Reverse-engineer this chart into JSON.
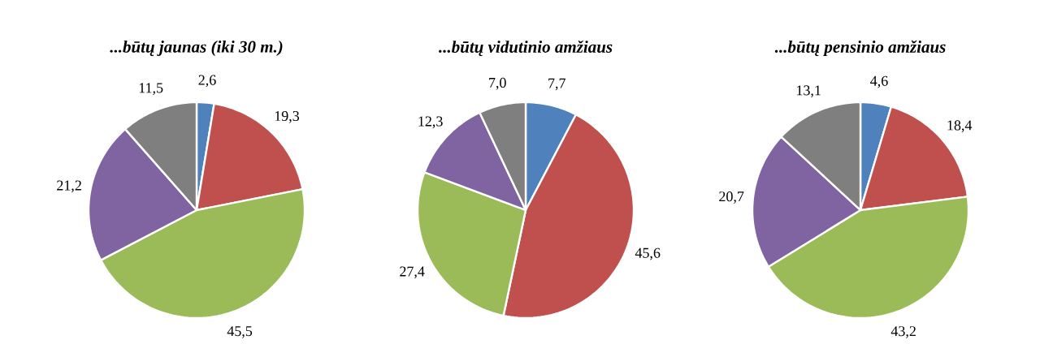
{
  "chart_data": [
    {
      "type": "pie",
      "title": "...būtų jaunas (iki 30 m.)",
      "categories": [
        null,
        null,
        null,
        null,
        null
      ],
      "values": [
        2.6,
        19.3,
        45.5,
        21.2,
        11.5
      ],
      "value_labels": [
        "2,6",
        "19,3",
        "45,5",
        "21,2",
        "11,5"
      ],
      "colors": [
        "#4f81bd",
        "#c0504d",
        "#9bbb59",
        "#8064a2",
        "#7f7f7f"
      ]
    },
    {
      "type": "pie",
      "title": "...būtų vidutinio amžiaus",
      "categories": [
        null,
        null,
        null,
        null,
        null
      ],
      "values": [
        7.7,
        45.6,
        27.4,
        12.3,
        7.0
      ],
      "value_labels": [
        "7,7",
        "45,6",
        "27,4",
        "12,3",
        "7,0"
      ],
      "colors": [
        "#4f81bd",
        "#c0504d",
        "#9bbb59",
        "#8064a2",
        "#7f7f7f"
      ]
    },
    {
      "type": "pie",
      "title": "...būtų pensinio amžiaus",
      "categories": [
        null,
        null,
        null,
        null,
        null
      ],
      "values": [
        4.6,
        18.4,
        43.2,
        20.7,
        13.1
      ],
      "value_labels": [
        "4,6",
        "18,4",
        "43,2",
        "20,7",
        "13,1"
      ],
      "colors": [
        "#4f81bd",
        "#c0504d",
        "#9bbb59",
        "#8064a2",
        "#7f7f7f"
      ]
    }
  ]
}
